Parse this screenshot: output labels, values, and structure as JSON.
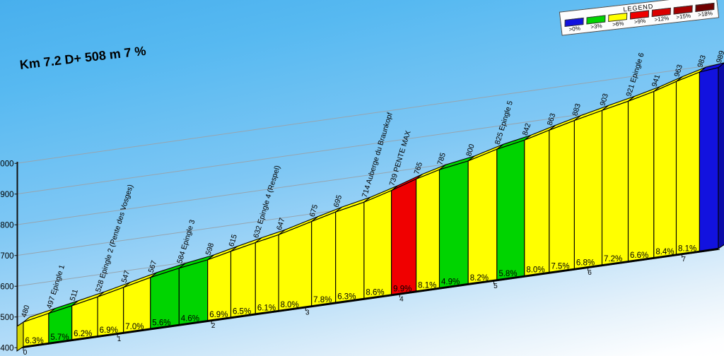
{
  "title": "Km 7.2 D+ 508 m 7 %",
  "legend": {
    "title": "LEGEND",
    "items": [
      {
        "label": ">0%",
        "color": "#1212DF"
      },
      {
        "label": ">3%",
        "color": "#00D400"
      },
      {
        "label": ">6%",
        "color": "#FFFF00"
      },
      {
        "label": ">9%",
        "color": "#F00000"
      },
      {
        "label": ">12%",
        "color": "#DB0000"
      },
      {
        "label": ">15%",
        "color": "#A80000"
      },
      {
        "label": ">18%",
        "color": "#700000"
      }
    ]
  },
  "chart_data": {
    "type": "bar",
    "title": "Km 7.2 D+ 508 m 7 %",
    "total_km": 7.2,
    "ylim": [
      400,
      1000
    ],
    "yticks": [
      400,
      500,
      600,
      700,
      800,
      900,
      1000
    ],
    "xticks_km": [
      0,
      1,
      2,
      3,
      4,
      5,
      6,
      7
    ],
    "boundaries": [
      {
        "elev": 480,
        "label": "480"
      },
      {
        "elev": 497,
        "label": "497 Epingle 1"
      },
      {
        "elev": 511,
        "label": "511"
      },
      {
        "elev": 528,
        "label": "528 Epingle 2 (Pente des Vosges)"
      },
      {
        "elev": 547,
        "label": "547"
      },
      {
        "elev": 567,
        "label": "567"
      },
      {
        "elev": 584,
        "label": "584 Epingle 3"
      },
      {
        "elev": 598,
        "label": "598"
      },
      {
        "elev": 615,
        "label": "615"
      },
      {
        "elev": 632,
        "label": "632 Epingle 4 (Respel)"
      },
      {
        "elev": 647,
        "label": "647"
      },
      {
        "elev": 675,
        "label": "675"
      },
      {
        "elev": 695,
        "label": "695"
      },
      {
        "elev": 714,
        "label": "714 Auberge du Braunkopf"
      },
      {
        "elev": 739,
        "label": "739 PENTE MAX"
      },
      {
        "elev": 765,
        "label": "765"
      },
      {
        "elev": 785,
        "label": "785"
      },
      {
        "elev": 800,
        "label": "800"
      },
      {
        "elev": 825,
        "label": "825 Epingle 5"
      },
      {
        "elev": 842,
        "label": "842"
      },
      {
        "elev": 863,
        "label": "863"
      },
      {
        "elev": 883,
        "label": "883"
      },
      {
        "elev": 903,
        "label": "903"
      },
      {
        "elev": 921,
        "label": "921 Epingle 6"
      },
      {
        "elev": 941,
        "label": "941"
      },
      {
        "elev": 963,
        "label": "963"
      },
      {
        "elev": 983,
        "label": "983"
      },
      {
        "elev": 989,
        "label": "989"
      }
    ],
    "segments": [
      {
        "grade_label": "6.3%",
        "grade": 6.3,
        "len_m": 270
      },
      {
        "grade_label": "5.7%",
        "grade": 5.7,
        "len_m": 246
      },
      {
        "grade_label": "6.2%",
        "grade": 6.2,
        "len_m": 274
      },
      {
        "grade_label": "6.9%",
        "grade": 6.9,
        "len_m": 275
      },
      {
        "grade_label": "7.0%",
        "grade": 7.0,
        "len_m": 286
      },
      {
        "grade_label": "5.6%",
        "grade": 5.6,
        "len_m": 304
      },
      {
        "grade_label": "4.6%",
        "grade": 4.6,
        "len_m": 304
      },
      {
        "grade_label": "6.9%",
        "grade": 6.9,
        "len_m": 246
      },
      {
        "grade_label": "6.5%",
        "grade": 6.5,
        "len_m": 262
      },
      {
        "grade_label": "6.1%",
        "grade": 6.1,
        "len_m": 246
      },
      {
        "grade_label": "8.0%",
        "grade": 8.0,
        "len_m": 350
      },
      {
        "grade_label": "7.8%",
        "grade": 7.8,
        "len_m": 256
      },
      {
        "grade_label": "6.3%",
        "grade": 6.3,
        "len_m": 302
      },
      {
        "grade_label": "8.6%",
        "grade": 8.6,
        "len_m": 291
      },
      {
        "grade_label": "9.9%",
        "grade": 9.9,
        "len_m": 263
      },
      {
        "grade_label": "8.1%",
        "grade": 8.1,
        "len_m": 247
      },
      {
        "grade_label": "4.9%",
        "grade": 4.9,
        "len_m": 306
      },
      {
        "grade_label": "8.2%",
        "grade": 8.2,
        "len_m": 305
      },
      {
        "grade_label": "5.8%",
        "grade": 5.8,
        "len_m": 293
      },
      {
        "grade_label": "8.0%",
        "grade": 8.0,
        "len_m": 263
      },
      {
        "grade_label": "7.5%",
        "grade": 7.5,
        "len_m": 267
      },
      {
        "grade_label": "6.8%",
        "grade": 6.8,
        "len_m": 294
      },
      {
        "grade_label": "7.2%",
        "grade": 7.2,
        "len_m": 278
      },
      {
        "grade_label": "6.6%",
        "grade": 6.6,
        "len_m": 273
      },
      {
        "grade_label": "8.4%",
        "grade": 8.4,
        "len_m": 238
      },
      {
        "grade_label": "8.1%",
        "grade": 8.1,
        "len_m": 247
      },
      {
        "grade_label": "",
        "grade": 3.0,
        "len_m": 200
      }
    ],
    "grade_colors": {
      "red": "#F00000",
      "yellow": "#FFFF00",
      "green": "#00D400",
      "blue": "#1212DF"
    },
    "shade_colors": {
      "red": "#C00000",
      "yellow": "#D8D800",
      "green": "#00A000",
      "blue": "#0B0BA8"
    },
    "thresholds": {
      "red": 9,
      "yellow": 6,
      "green": 3,
      "blue": 0
    },
    "axis_color": "#111111",
    "grid_color": "#96A5B0"
  }
}
